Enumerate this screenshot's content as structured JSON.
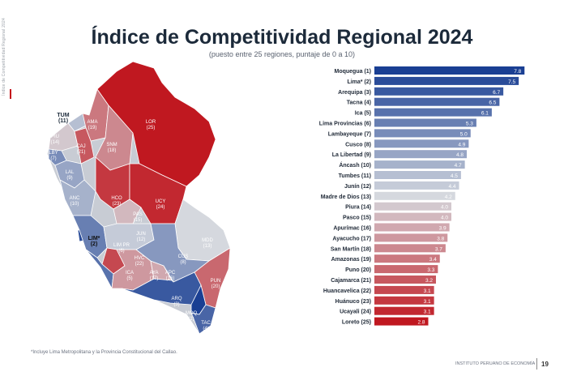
{
  "side_text": "Índice de Competitividad Regional 2024",
  "title": "Índice de Competitividad Regional 2024",
  "subtitle": "(puesto entre 25 regiones, puntaje de 0 a 10)",
  "footnote": "*Incluye Lima Metropolitana y la Provincia Constitucional del Callao.",
  "footer": {
    "org": "INSTITUTO PERUANO DE ECONOMÍA",
    "page": "19"
  },
  "colors": {
    "top": "#1a3f93",
    "mid": "#d5d8de",
    "bottom": "#c01820"
  },
  "map_regions": [
    {
      "code": "TUM",
      "rank": "(11)"
    },
    {
      "code": "PIU",
      "rank": "(14)"
    },
    {
      "code": "LBY",
      "rank": "(7)"
    },
    {
      "code": "CAJ",
      "rank": "(21)"
    },
    {
      "code": "AMA",
      "rank": "(19)"
    },
    {
      "code": "LAL",
      "rank": "(9)"
    },
    {
      "code": "SNM",
      "rank": "(18)"
    },
    {
      "code": "LOR",
      "rank": "(25)"
    },
    {
      "code": "ANC",
      "rank": "(10)"
    },
    {
      "code": "HCO",
      "rank": "(23)"
    },
    {
      "code": "UCY",
      "rank": "(24)"
    },
    {
      "code": "PAS",
      "rank": "(15)"
    },
    {
      "code": "LIM*",
      "rank": "(2)"
    },
    {
      "code": "JUN",
      "rank": "(12)"
    },
    {
      "code": "LIM PR",
      "rank": "(6)"
    },
    {
      "code": "HVC",
      "rank": "(22)"
    },
    {
      "code": "MDD",
      "rank": "(13)"
    },
    {
      "code": "CUS",
      "rank": "(8)"
    },
    {
      "code": "ICA",
      "rank": "(5)"
    },
    {
      "code": "AYA",
      "rank": "(17)"
    },
    {
      "code": "APC",
      "rank": "(16)"
    },
    {
      "code": "PUN",
      "rank": "(20)"
    },
    {
      "code": "ARQ",
      "rank": "(3)"
    },
    {
      "code": "MOQ",
      "rank": "(1)"
    },
    {
      "code": "TAC",
      "rank": "(4)"
    }
  ],
  "chart_data": {
    "type": "bar",
    "orientation": "horizontal",
    "title": "Índice de Competitividad Regional 2024",
    "subtitle": "(puesto entre 25 regiones, puntaje de 0 a 10)",
    "categories": [
      "Moquegua (1)",
      "Lima* (2)",
      "Arequipa (3)",
      "Tacna (4)",
      "Ica (5)",
      "Lima Provincias (6)",
      "Lambayeque (7)",
      "Cusco (8)",
      "La Libertad (9)",
      "Áncash (10)",
      "Tumbes (11)",
      "Junín (12)",
      "Madre de Dios (13)",
      "Piura (14)",
      "Pasco (15)",
      "Apurímac (16)",
      "Ayacucho (17)",
      "San Martín (18)",
      "Amazonas (19)",
      "Puno (20)",
      "Cajamarca (21)",
      "Huancavelica (22)",
      "Huánuco (23)",
      "Ucayali (24)",
      "Loreto (25)"
    ],
    "values": [
      7.8,
      7.5,
      6.7,
      6.5,
      6.1,
      5.3,
      5.0,
      4.9,
      4.8,
      4.7,
      4.5,
      4.4,
      4.2,
      4.0,
      4.0,
      3.9,
      3.8,
      3.7,
      3.4,
      3.3,
      3.2,
      3.1,
      3.1,
      3.1,
      2.8
    ],
    "labels": [
      "7.8",
      "7.5",
      "6.7",
      "6.5",
      "6.1",
      "5.3",
      "5.0",
      "4.9",
      "4.8",
      "4.7",
      "4.5",
      "4.4",
      "4.2",
      "4.0",
      "4.0",
      "3.9",
      "3.8",
      "3.7",
      "3.4",
      "3.3",
      "3.2",
      "3.1",
      "3.1",
      "3.1",
      "2.8"
    ],
    "xlim": [
      0,
      8
    ],
    "grid": false,
    "legend": "none"
  }
}
